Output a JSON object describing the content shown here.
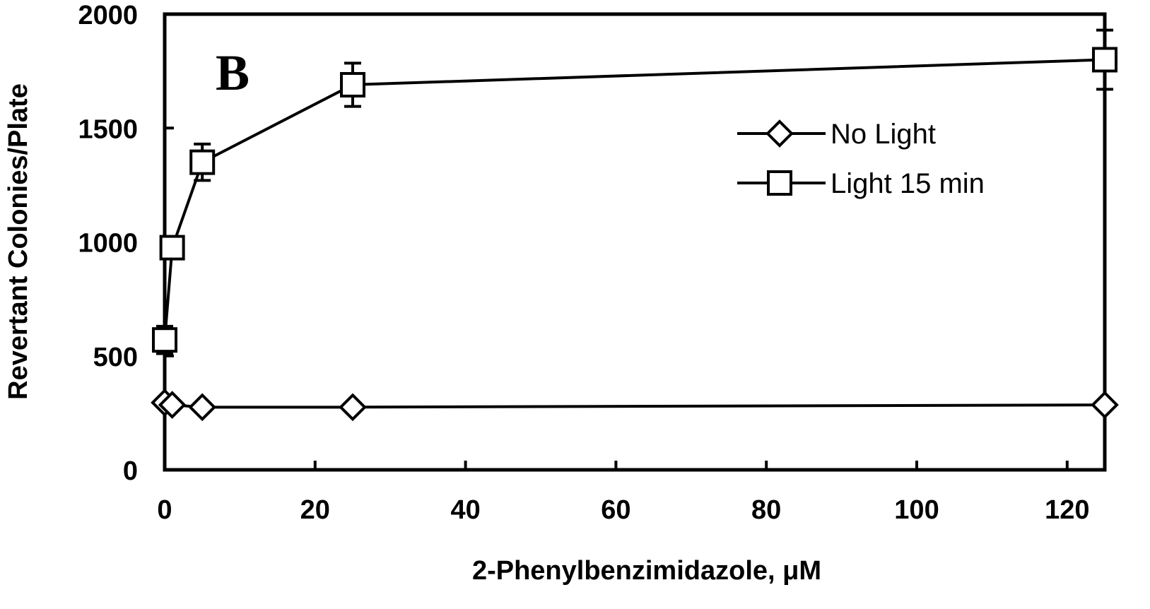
{
  "chart_data": {
    "type": "line",
    "panel_label": "B",
    "xlabel": "2-Phenylbenzimidazole, μM",
    "ylabel": "Revertant Colonies/Plate",
    "xlim": [
      0,
      125
    ],
    "ylim": [
      0,
      2000
    ],
    "x_ticks": [
      0,
      20,
      40,
      60,
      80,
      100,
      120
    ],
    "y_ticks": [
      0,
      500,
      1000,
      1500,
      2000
    ],
    "grid": false,
    "legend_position": "top-right",
    "series": [
      {
        "name": "No Light",
        "marker": "diamond",
        "x": [
          0,
          1,
          5,
          25,
          125
        ],
        "y": [
          295,
          285,
          275,
          275,
          285
        ],
        "err": [
          0,
          0,
          0,
          0,
          0
        ]
      },
      {
        "name": "Light  15 min",
        "marker": "square",
        "x": [
          0,
          1,
          5,
          25,
          125
        ],
        "y": [
          570,
          975,
          1350,
          1690,
          1800
        ],
        "err": [
          60,
          30,
          80,
          95,
          130
        ]
      }
    ]
  }
}
